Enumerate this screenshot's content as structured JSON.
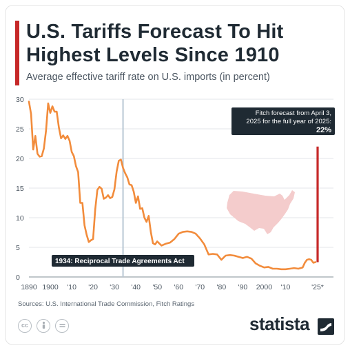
{
  "title_line1": "U.S. Tariffs Forecast To Hit",
  "title_line2": "Highest Levels Since 1910",
  "subtitle": "Average effective tariff rate on U.S. imports (in percent)",
  "source": "Sources: U.S. International Trade Commission, Fitch Ratings",
  "brand": "statista",
  "license_icons": [
    "cc-icon",
    "attribution-icon",
    "no-derivatives-icon"
  ],
  "colors": {
    "line": "#f28c3c",
    "forecast_bar": "#c62828",
    "accent": "#c62828",
    "annotation_line": "#b8c7d3",
    "callout_bg": "#1f2a33",
    "map": "#f4cccc"
  },
  "chart_data": {
    "type": "line",
    "title": "U.S. Tariffs Forecast To Hit Highest Levels Since 1910",
    "subtitle": "Average effective tariff rate on U.S. imports (in percent)",
    "xlabel": "",
    "ylabel": "",
    "ylim": [
      0,
      30
    ],
    "xlim": [
      1890,
      2026
    ],
    "y_ticks": [
      0,
      5,
      10,
      15,
      20,
      25,
      30
    ],
    "x_ticks": [
      {
        "value": 1890,
        "label": "1890"
      },
      {
        "value": 1900,
        "label": "1900"
      },
      {
        "value": 1910,
        "label": "'10"
      },
      {
        "value": 1920,
        "label": "'20"
      },
      {
        "value": 1930,
        "label": "'30"
      },
      {
        "value": 1940,
        "label": "'40"
      },
      {
        "value": 1950,
        "label": "'50"
      },
      {
        "value": 1960,
        "label": "'60"
      },
      {
        "value": 1970,
        "label": "'70"
      },
      {
        "value": 1980,
        "label": "'80"
      },
      {
        "value": 1990,
        "label": "'90"
      },
      {
        "value": 2000,
        "label": "2000"
      },
      {
        "value": 2010,
        "label": "'10"
      },
      {
        "value": 2025,
        "label": "'25*"
      }
    ],
    "grid": "horizontal",
    "series": [
      {
        "x": [
          1890,
          1891,
          1892,
          1893,
          1894,
          1895,
          1896,
          1897,
          1898,
          1899,
          1900,
          1901,
          1902,
          1903,
          1904,
          1905,
          1906,
          1907,
          1908,
          1909,
          1910,
          1911,
          1912,
          1913,
          1914,
          1915,
          1916,
          1917,
          1918,
          1919,
          1920,
          1921,
          1922,
          1923,
          1924,
          1925,
          1926,
          1927,
          1928,
          1929,
          1930,
          1931,
          1932,
          1933,
          1934,
          1935,
          1936,
          1937,
          1938,
          1939,
          1940,
          1941,
          1942,
          1943,
          1944,
          1945,
          1946,
          1947,
          1948,
          1949,
          1950,
          1952,
          1954,
          1956,
          1958,
          1960,
          1962,
          1964,
          1966,
          1968,
          1970,
          1972,
          1974,
          1976,
          1978,
          1980,
          1982,
          1984,
          1986,
          1988,
          1990,
          1992,
          1994,
          1996,
          1998,
          2000,
          2002,
          2004,
          2006,
          2008,
          2010,
          2012,
          2014,
          2016,
          2018,
          2019,
          2020,
          2021,
          2022,
          2023,
          2024
        ],
        "y": [
          29.6,
          27.5,
          21.5,
          23.8,
          20.8,
          20.3,
          20.4,
          21.7,
          24.7,
          29.3,
          27.7,
          28.8,
          27.9,
          27.9,
          25.2,
          23.4,
          23.9,
          23.3,
          23.8,
          23.0,
          21.1,
          20.4,
          18.7,
          17.7,
          12.5,
          12.5,
          8.7,
          7.1,
          5.9,
          6.2,
          6.4,
          11.4,
          14.7,
          15.2,
          14.9,
          13.2,
          13.4,
          13.8,
          13.3,
          13.5,
          14.8,
          17.8,
          19.6,
          19.8,
          18.4,
          17.5,
          16.8,
          15.6,
          15.5,
          14.4,
          12.5,
          13.6,
          11.5,
          11.6,
          10.0,
          9.3,
          10.3,
          7.6,
          5.7,
          5.5,
          6.0,
          5.3,
          5.6,
          5.8,
          6.4,
          7.3,
          7.6,
          7.7,
          7.6,
          7.3,
          6.5,
          5.5,
          3.8,
          3.9,
          3.8,
          2.9,
          3.6,
          3.7,
          3.6,
          3.4,
          3.2,
          3.4,
          3.1,
          2.3,
          1.9,
          1.6,
          1.7,
          1.4,
          1.4,
          1.3,
          1.3,
          1.4,
          1.5,
          1.4,
          1.6,
          2.4,
          2.9,
          3.0,
          2.9,
          2.4,
          2.5
        ]
      }
    ],
    "forecast": {
      "x": 2025,
      "y": 22
    },
    "annotations": [
      {
        "x": 1934,
        "label": "1934: Reciprocal Trade Agreements Act"
      },
      {
        "x": 2025,
        "label_line1": "Fitch forecast from April 3,",
        "label_line2": "2025 for the full year of 2025:",
        "value_label": "22%"
      }
    ]
  }
}
